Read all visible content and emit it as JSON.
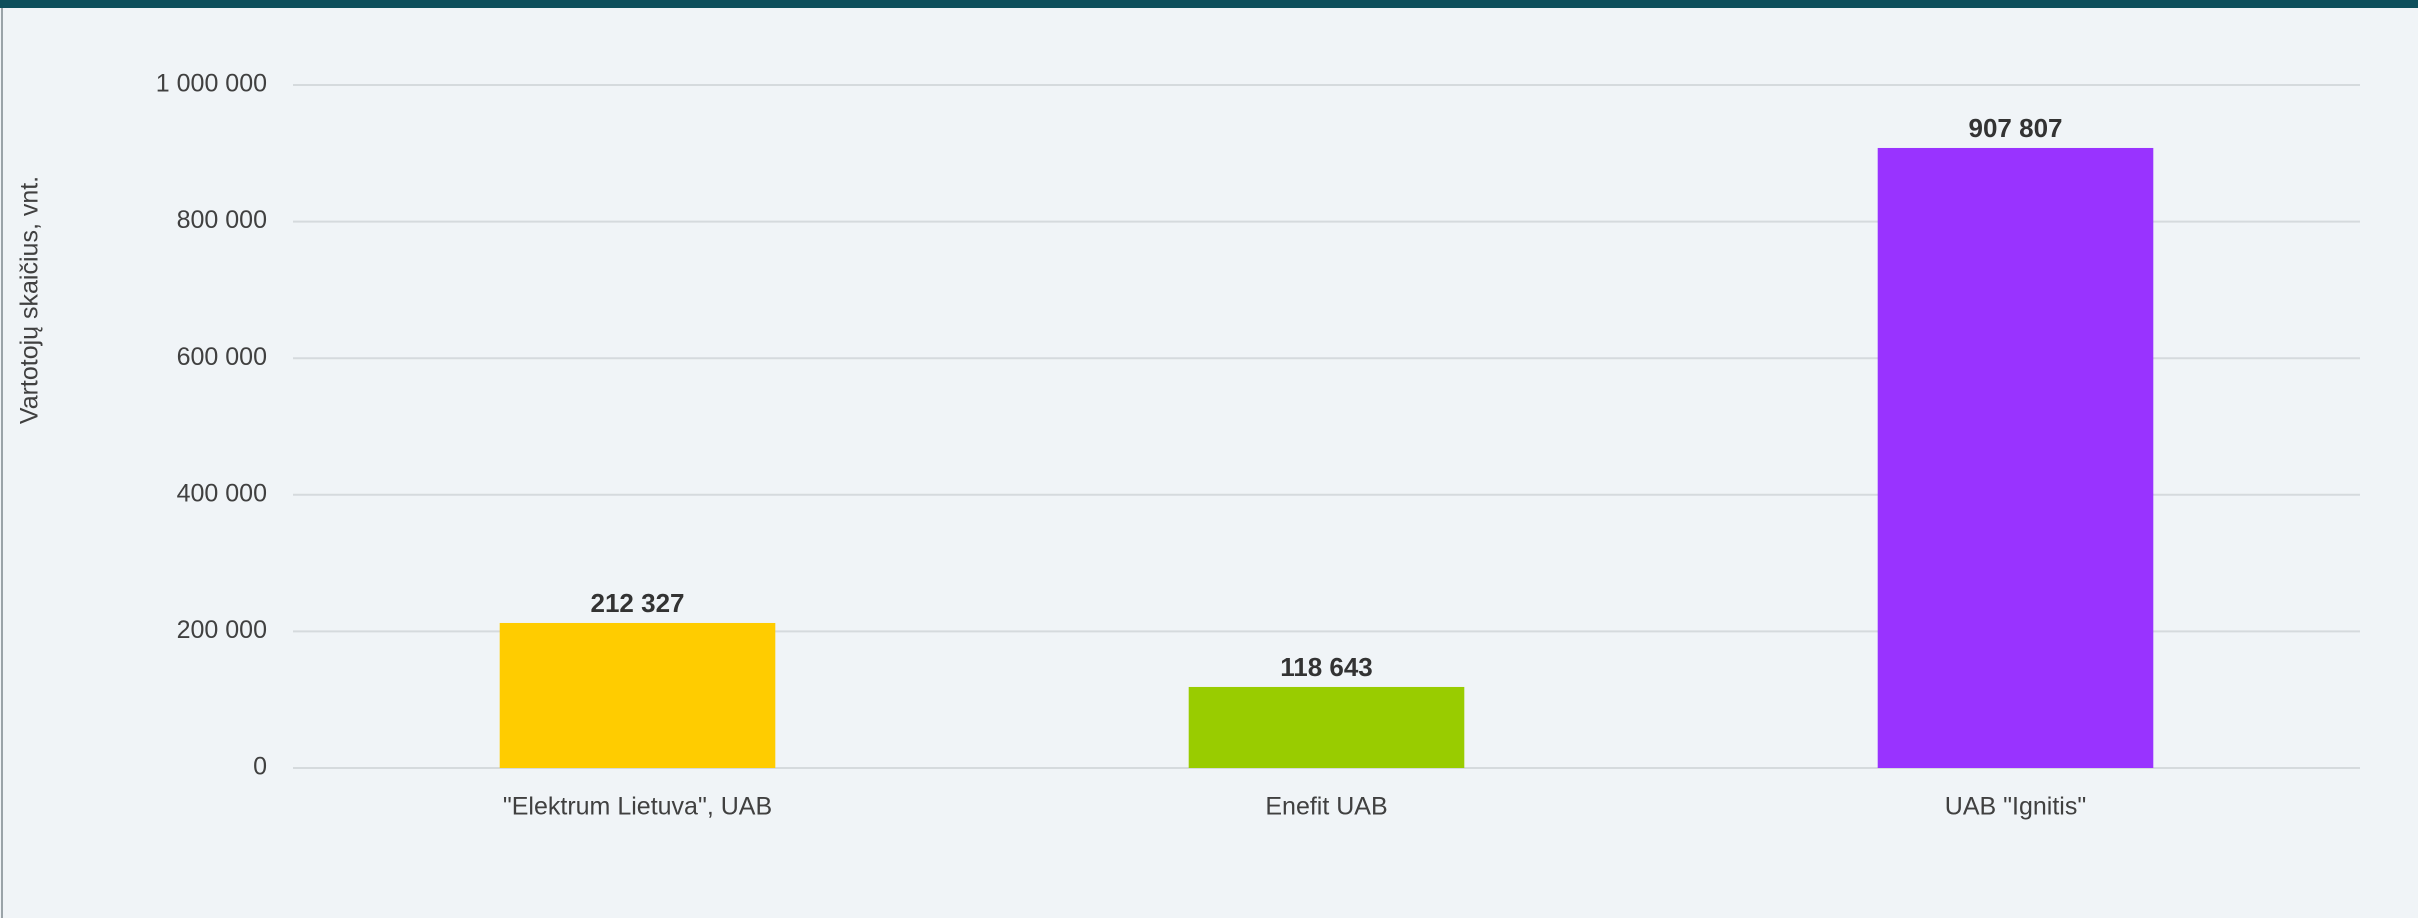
{
  "chart_data": {
    "type": "bar",
    "y_axis_label": "Vartotojų skaičius, vnt.",
    "categories": [
      "\"Elektrum Lietuva\", UAB",
      "Enefit UAB",
      "UAB \"Ignitis\""
    ],
    "values": [
      212327,
      118643,
      907807
    ],
    "value_labels": [
      "212 327",
      "118 643",
      "907 807"
    ],
    "colors": [
      "#ffcc00",
      "#99cc00",
      "#9933ff"
    ],
    "ylim": [
      0,
      1000000
    ],
    "yticks": [
      0,
      {
        "value": 200000,
        "label": "200 000"
      },
      {
        "value": 400000,
        "label": "400 000"
      },
      {
        "value": 600000,
        "label": "600 000"
      },
      {
        "value": 800000,
        "label": "800 000"
      },
      {
        "value": 1000000,
        "label": "1 000 000"
      }
    ],
    "grid": true
  }
}
